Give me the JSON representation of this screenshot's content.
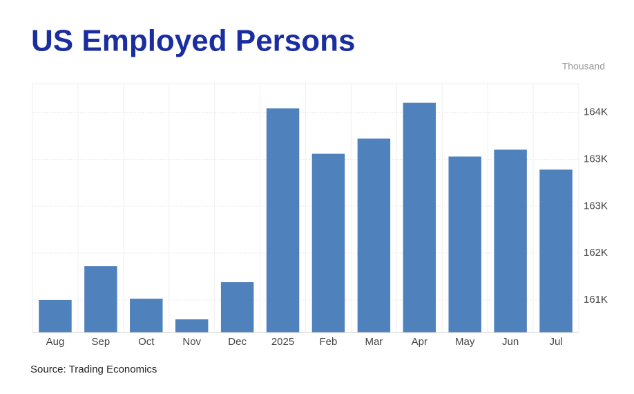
{
  "chart_data": {
    "type": "bar",
    "title": "US Employed Persons",
    "unit_label": "Thousand",
    "source": "Source: Trading Economics",
    "categories": [
      "Aug",
      "Sep",
      "Oct",
      "Nov",
      "Dec",
      "2025",
      "Feb",
      "Mar",
      "Apr",
      "May",
      "Jun",
      "Jul"
    ],
    "values": [
      161000,
      161540,
      161020,
      160690,
      161286,
      164066,
      163338,
      163581,
      164154,
      163294,
      163404,
      163085
    ],
    "color": "#4f81bd",
    "ylim": [
      160480,
      164460
    ],
    "yticks": [
      {
        "value": 161000,
        "label": "161K"
      },
      {
        "value": 161750,
        "label": "162K"
      },
      {
        "value": 162500,
        "label": "163K"
      },
      {
        "value": 163250,
        "label": "163K"
      },
      {
        "value": 164000,
        "label": "164K"
      }
    ],
    "grid": true
  }
}
